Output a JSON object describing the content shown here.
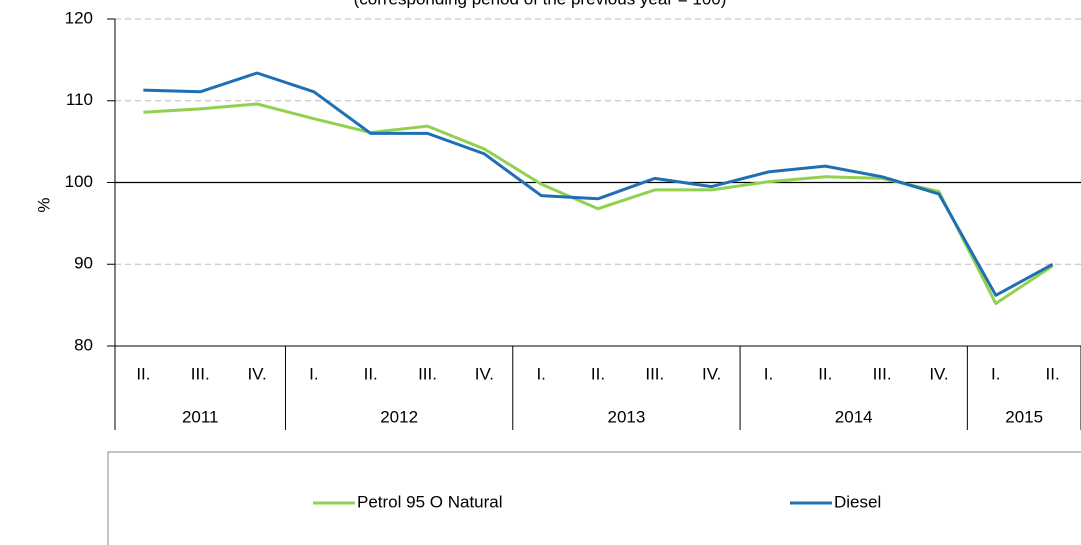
{
  "chart_data": {
    "type": "line",
    "subtitle": "(corresponding period of the previous year = 100)",
    "y_label": "%",
    "categories": [
      "II.",
      "III.",
      "IV.",
      "I.",
      "II.",
      "III.",
      "IV.",
      "I.",
      "II.",
      "III.",
      "IV.",
      "I.",
      "II.",
      "III.",
      "IV.",
      "I.",
      "II."
    ],
    "groups": [
      {
        "label": "2011",
        "count": 3
      },
      {
        "label": "2012",
        "count": 4
      },
      {
        "label": "2013",
        "count": 4
      },
      {
        "label": "2014",
        "count": 4
      },
      {
        "label": "2015",
        "count": 2
      }
    ],
    "series": [
      {
        "name": "Petrol 95 O Natural",
        "color": "#92d050",
        "values": [
          108.6,
          109.0,
          109.6,
          107.8,
          106.1,
          106.9,
          104.1,
          99.8,
          96.8,
          99.1,
          99.1,
          100.1,
          100.7,
          100.5,
          98.9,
          85.2,
          89.8
        ]
      },
      {
        "name": "Diesel",
        "color": "#1f6fb4",
        "values": [
          111.3,
          111.1,
          113.4,
          111.1,
          106.0,
          106.0,
          103.5,
          98.4,
          98.0,
          100.5,
          99.5,
          101.3,
          102.0,
          100.7,
          98.6,
          86.2,
          90.0
        ]
      }
    ],
    "ylim": [
      80,
      120
    ],
    "yticks": [
      80,
      90,
      100,
      110,
      120
    ],
    "grid": true,
    "reference_line": 100
  }
}
